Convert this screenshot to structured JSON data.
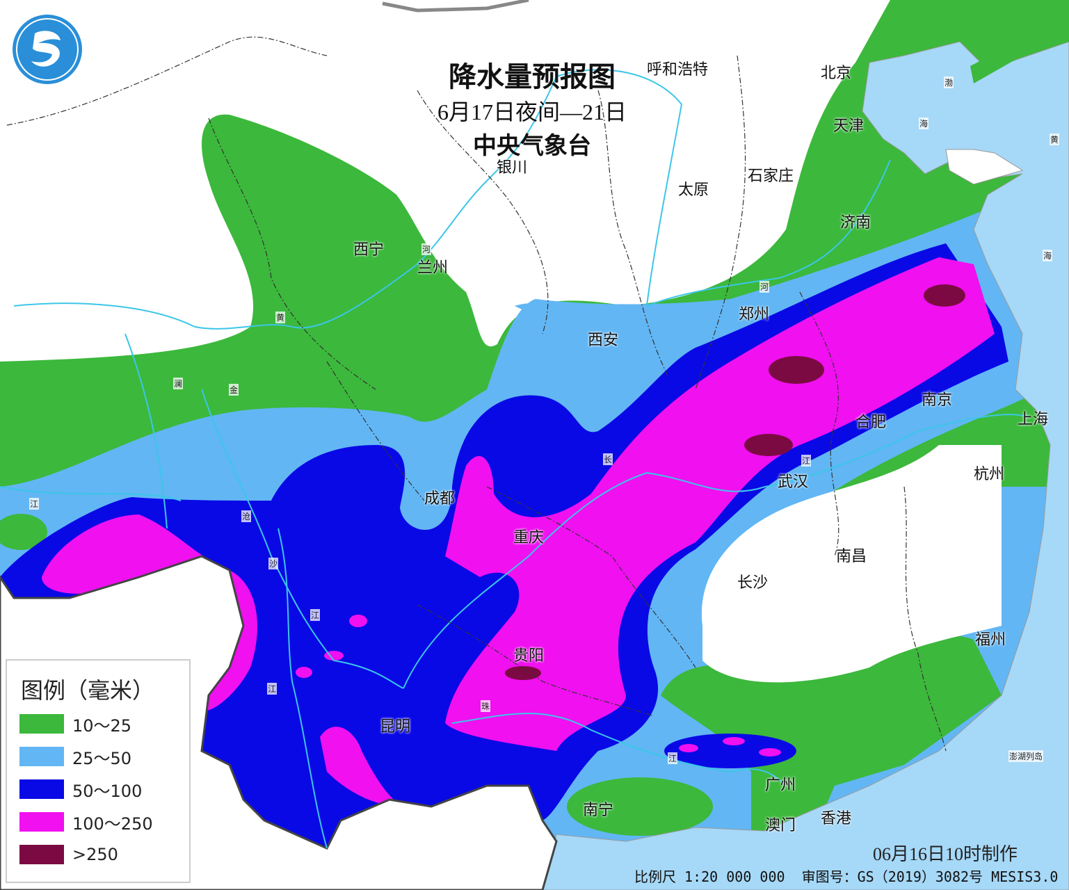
{
  "title": {
    "main": "降水量预报图",
    "period": "6月17日夜间—21日",
    "agency": "中央气象台"
  },
  "logo_icon": "cma-logo",
  "colors": {
    "sea": "#a6d8f7",
    "green": "#3cb83c",
    "lightblue": "#62b6f4",
    "blue": "#0909e6",
    "magenta": "#f010f0",
    "maroon": "#7c0a42"
  },
  "legend": {
    "title": "图例（毫米）",
    "items": [
      {
        "label": "10～25",
        "color": "#3cb83c"
      },
      {
        "label": "25～50",
        "color": "#62b6f4"
      },
      {
        "label": "50～100",
        "color": "#0909e6"
      },
      {
        "label": "100～250",
        "color": "#f010f0"
      },
      {
        "label": ">250",
        "color": "#7c0a42"
      }
    ]
  },
  "cities": [
    "呼和浩特",
    "北京",
    "天津",
    "石家庄",
    "太原",
    "济南",
    "银川",
    "西宁",
    "兰州",
    "郑州",
    "西安",
    "南京",
    "合肥",
    "上海",
    "成都",
    "武汉",
    "杭州",
    "重庆",
    "南昌",
    "长沙",
    "福州",
    "贵阳",
    "昆明",
    "南宁",
    "广州",
    "澳门",
    "香港"
  ],
  "small_labels": [
    "渤",
    "海",
    "黄",
    "海",
    "澎湖列岛",
    "河",
    "黄",
    "河",
    "澜",
    "金",
    "江",
    "沧",
    "沙",
    "江",
    "江",
    "长",
    "江",
    "珠",
    "江"
  ],
  "footer": {
    "made": "06月16日10时制作",
    "scale": "比例尺 1:20 000 000",
    "review": "审图号：GS（2019）3082号 MESIS3.0"
  }
}
